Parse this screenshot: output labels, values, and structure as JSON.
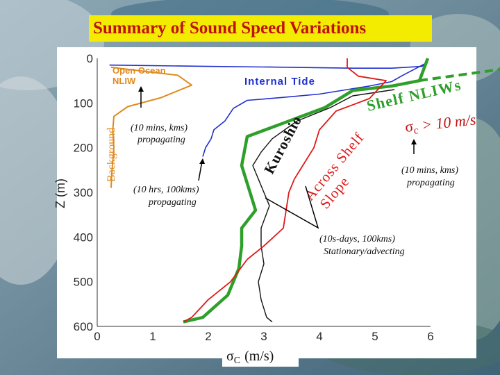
{
  "slide": {
    "title": "Summary of  Sound Speed Variations"
  },
  "colors": {
    "banner_fill": "#f4ec00",
    "title_text": "#c01010",
    "open_ocean": "#e08a1e",
    "internal_tide": "#1f2fcf",
    "shelf": "#2ea02a",
    "kuroshio": "#111111",
    "across_shelf": "#e01818",
    "background_label": "#e08a1e"
  },
  "chart_data": {
    "type": "line",
    "title": "",
    "xlabel_sigma": "σ",
    "xlabel_sub": "C",
    "xlabel_units": "(m/s)",
    "ylabel": "Z (m)",
    "xlim": [
      0,
      6
    ],
    "ylim": [
      0,
      600
    ],
    "y_inverted": true,
    "x_ticks": [
      "0",
      "1",
      "2",
      "3",
      "4",
      "5",
      "6"
    ],
    "y_ticks": [
      "0",
      "100",
      "200",
      "300",
      "400",
      "500",
      "600"
    ],
    "grid": false,
    "series": [
      {
        "name": "Open Ocean NLIW",
        "label_lines": [
          "Open Ocean",
          "NLIW"
        ],
        "color": "#e08a1e",
        "points": [
          [
            0.25,
            20
          ],
          [
            0.9,
            30
          ],
          [
            1.45,
            38
          ],
          [
            1.7,
            60
          ],
          [
            1.15,
            88
          ],
          [
            0.55,
            108
          ],
          [
            0.3,
            130
          ],
          [
            0.28,
            160
          ],
          [
            0.3,
            200
          ],
          [
            0.26,
            260
          ],
          [
            0.25,
            290
          ]
        ]
      },
      {
        "name": "Internal Tide",
        "label_lines": [
          "Internal Tide"
        ],
        "color": "#1f2fcf",
        "points": [
          [
            0.22,
            15
          ],
          [
            2.0,
            18
          ],
          [
            3.5,
            20
          ],
          [
            4.6,
            22
          ],
          [
            5.3,
            22
          ],
          [
            5.85,
            18
          ],
          [
            5.9,
            12
          ],
          [
            5.5,
            38
          ],
          [
            5.3,
            52
          ],
          [
            4.9,
            62
          ],
          [
            4.5,
            70
          ],
          [
            4.0,
            80
          ],
          [
            3.3,
            88
          ],
          [
            2.7,
            94
          ],
          [
            2.45,
            112
          ],
          [
            2.3,
            140
          ],
          [
            2.1,
            160
          ],
          [
            2.05,
            180
          ],
          [
            1.95,
            200
          ],
          [
            1.9,
            220
          ]
        ]
      },
      {
        "name": "Shelf NLIWs",
        "label_lines": [
          "Shelf NLIWs"
        ],
        "color": "#2ea02a",
        "points": [
          [
            5.95,
            0
          ],
          [
            5.8,
            50
          ],
          [
            5.3,
            62
          ],
          [
            4.6,
            72
          ],
          [
            4.1,
            110
          ],
          [
            3.35,
            145
          ],
          [
            2.7,
            175
          ],
          [
            2.6,
            240
          ],
          [
            2.75,
            300
          ],
          [
            2.85,
            340
          ],
          [
            2.6,
            380
          ],
          [
            2.6,
            420
          ],
          [
            2.55,
            470
          ],
          [
            2.35,
            530
          ],
          [
            1.9,
            580
          ],
          [
            1.55,
            590
          ]
        ]
      },
      {
        "name": "Kuroshio",
        "label_lines": [
          "Kuroshio"
        ],
        "color": "#111111",
        "points": [
          [
            5.35,
            70
          ],
          [
            4.6,
            84
          ],
          [
            4.2,
            110
          ],
          [
            3.6,
            140
          ],
          [
            3.15,
            180
          ],
          [
            2.95,
            210
          ],
          [
            2.8,
            240
          ],
          [
            2.9,
            270
          ],
          [
            3.0,
            300
          ],
          [
            3.1,
            330
          ],
          [
            2.95,
            380
          ],
          [
            2.95,
            420
          ],
          [
            3.0,
            460
          ],
          [
            2.9,
            500
          ],
          [
            2.95,
            540
          ],
          [
            3.05,
            580
          ],
          [
            3.15,
            590
          ]
        ]
      },
      {
        "name": "Across Shelf Slope",
        "label_lines": [
          "Across Shelf",
          "Slope"
        ],
        "color": "#e01818",
        "points": [
          [
            4.5,
            0
          ],
          [
            4.5,
            20
          ],
          [
            4.7,
            40
          ],
          [
            5.2,
            50
          ],
          [
            4.9,
            90
          ],
          [
            4.3,
            118
          ],
          [
            4.0,
            160
          ],
          [
            3.9,
            200
          ],
          [
            3.7,
            240
          ],
          [
            3.55,
            270
          ],
          [
            3.45,
            300
          ],
          [
            3.4,
            340
          ],
          [
            3.35,
            380
          ],
          [
            3.0,
            420
          ],
          [
            2.7,
            450
          ],
          [
            2.4,
            500
          ],
          [
            2.0,
            540
          ],
          [
            1.7,
            580
          ],
          [
            1.55,
            590
          ]
        ]
      }
    ],
    "side_label": "Background",
    "sigma_label": {
      "sigma": "σ",
      "sub": "c",
      "rest": " > 10 m/s"
    },
    "annotations": [
      {
        "lines": [
          "(10 mins, kms)",
          "propagating"
        ]
      },
      {
        "lines": [
          "(10 hrs, 100kms)",
          "propagating"
        ]
      },
      {
        "lines": [
          "(10s-days, 100kms)",
          "Stationary/advecting"
        ]
      },
      {
        "lines": [
          "(10 mins, kms)",
          "propagating"
        ]
      }
    ]
  }
}
